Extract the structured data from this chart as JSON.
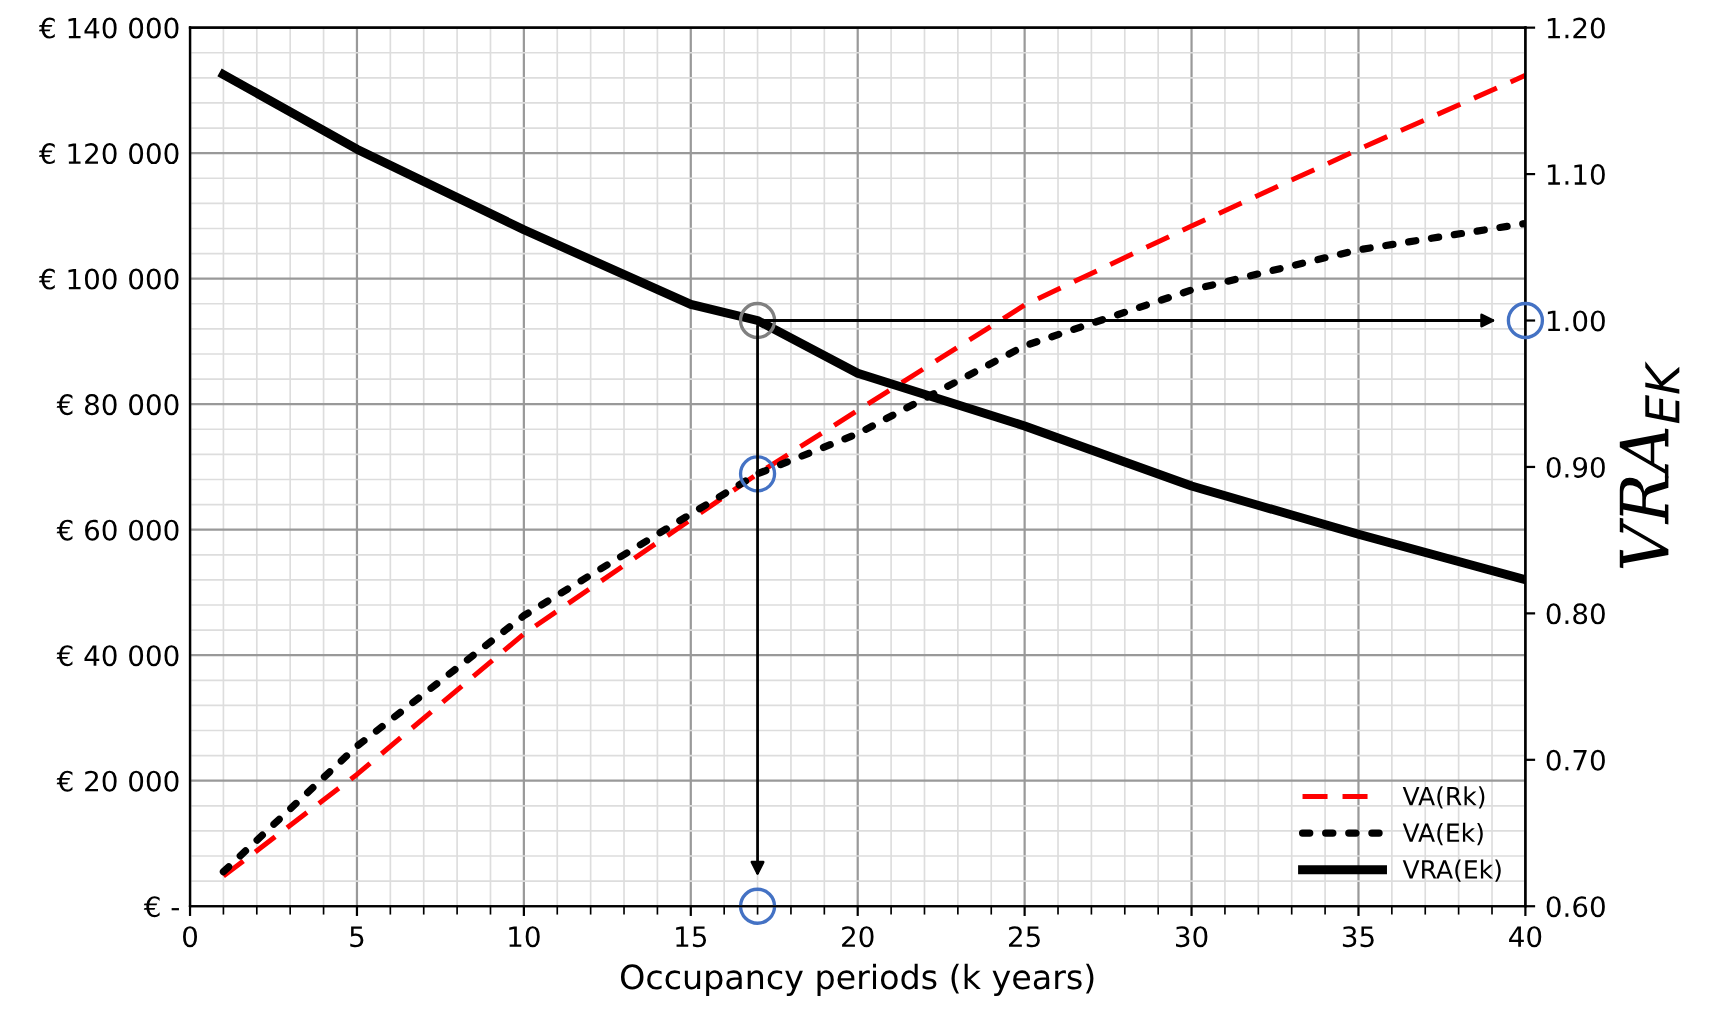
{
  "chart_data": {
    "type": "line",
    "xlabel": "Occupancy periods (k years)",
    "y2label": "VRA$_{EK}$",
    "xlim": [
      0,
      40
    ],
    "xticks": [
      0,
      5,
      10,
      15,
      20,
      25,
      30,
      35,
      40
    ],
    "ylim": [
      0,
      140000
    ],
    "yticks": [
      {
        "value": 0,
        "label": "€ -"
      },
      {
        "value": 20000,
        "label": "€ 20 000"
      },
      {
        "value": 40000,
        "label": "€ 40 000"
      },
      {
        "value": 60000,
        "label": "€ 60 000"
      },
      {
        "value": 80000,
        "label": "€ 80 000"
      },
      {
        "value": 100000,
        "label": "€ 100 000"
      },
      {
        "value": 120000,
        "label": "€ 120 000"
      },
      {
        "value": 140000,
        "label": "€ 140 000"
      }
    ],
    "y2lim": [
      0.6,
      1.2
    ],
    "y2ticks": [
      {
        "value": 0.6,
        "label": "0.60"
      },
      {
        "value": 0.7,
        "label": "0.70"
      },
      {
        "value": 0.8,
        "label": "0.80"
      },
      {
        "value": 0.9,
        "label": "0.90"
      },
      {
        "value": 1.0,
        "label": "1.00"
      },
      {
        "value": 1.1,
        "label": "1.10"
      },
      {
        "value": 1.2,
        "label": "1.20"
      }
    ],
    "grid": true,
    "legend": "bottom right",
    "marker": "none",
    "series": [
      {
        "name": "VA(Rk)",
        "color": "#ff0000",
        "line_style": "dashed",
        "x": [
          1,
          5,
          10,
          15,
          17,
          20,
          25,
          30,
          35,
          40
        ],
        "values": [
          4800,
          21000,
          43400,
          61600,
          68900,
          79000,
          95800,
          108400,
          120600,
          132400
        ]
      },
      {
        "name": "VA(Ek)",
        "color": "#000000",
        "line_style": "dotted",
        "x": [
          1,
          5,
          10,
          15,
          17,
          20,
          25,
          30,
          35,
          40
        ],
        "values": [
          5500,
          25500,
          46300,
          62500,
          68900,
          75300,
          89300,
          98200,
          104600,
          108800
        ]
      },
      {
        "name": "VRA(Ek)",
        "color": "#000000",
        "line_style": "solid",
        "axis": "y2",
        "x": [
          1,
          5,
          10,
          15,
          17,
          20,
          25,
          30,
          35,
          40
        ],
        "values": [
          1.168,
          1.117,
          1.062,
          1.011,
          1.0,
          0.964,
          0.928,
          0.887,
          0.854,
          0.823
        ]
      },
      {
        "type": "scatter",
        "marker": "circle",
        "color": "#4472c4",
        "x": [
          17,
          17
        ],
        "values": [
          68900,
          0
        ]
      },
      {
        "type": "scatter",
        "marker": "circle",
        "color": "#4472c4",
        "axis": "y2",
        "x": [
          40
        ],
        "values": [
          1.0
        ]
      },
      {
        "type": "scatter",
        "marker": "circle",
        "color": "#808080",
        "axis": "y2",
        "x": [
          17
        ],
        "values": [
          1.0
        ]
      }
    ]
  }
}
